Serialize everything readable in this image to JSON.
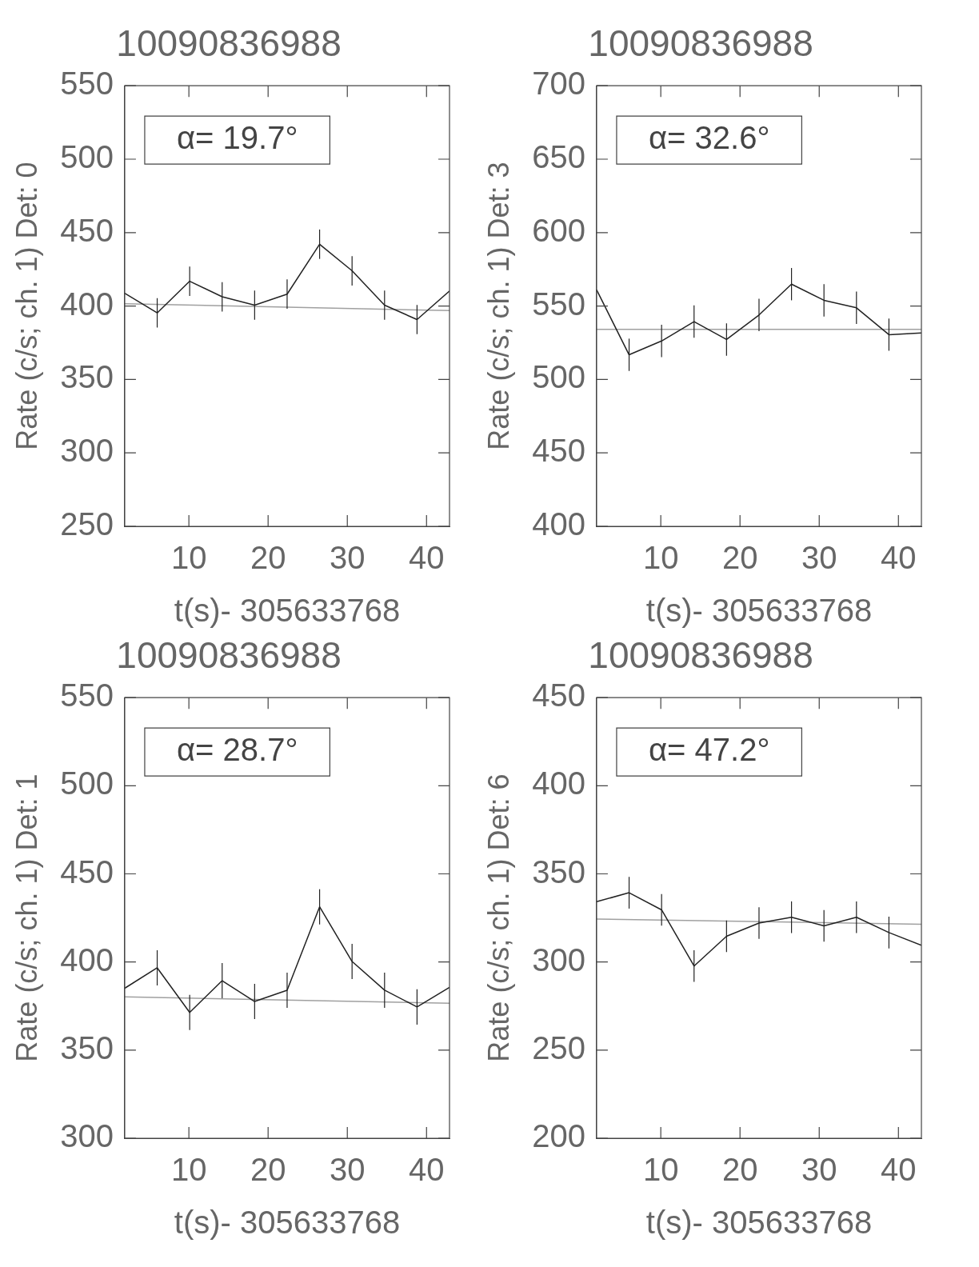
{
  "chart_data": [
    {
      "type": "line",
      "title": "10090836988",
      "xlabel": "t(s)- 305633768",
      "ylabel": "Rate (c/s; ch. 1) Det: 0",
      "annotations": [
        "α= 19.7°"
      ],
      "xlim": [
        1.9,
        42.9
      ],
      "ylim": [
        250,
        550
      ],
      "xticks": [
        10,
        20,
        30,
        40
      ],
      "yticks": [
        250,
        300,
        350,
        400,
        450,
        500,
        550
      ],
      "grid": false,
      "marker": "none",
      "series": [
        {
          "color": "#222222",
          "x": [
            1.9,
            6,
            10.1,
            14.2,
            18.3,
            22.4,
            26.5,
            30.6,
            34.7,
            38.8,
            42.9
          ],
          "values": [
            408.7,
            395.3,
            416.9,
            406.3,
            400.6,
            408.1,
            442.1,
            424.0,
            400.6,
            390.8,
            410.2
          ],
          "errors": [
            null,
            10,
            10,
            10,
            10,
            10,
            10,
            10,
            10,
            10,
            null
          ]
        },
        {
          "type": "line",
          "color": "#a0a0a0",
          "x": [
            1.9,
            42.9
          ],
          "values": [
            401.6,
            396.9
          ]
        }
      ]
    },
    {
      "type": "line",
      "title": "10090836988",
      "xlabel": "t(s)- 305633768",
      "ylabel": "Rate (c/s; ch. 1) Det: 3",
      "annotations": [
        "α= 32.6°"
      ],
      "xlim": [
        1.9,
        42.9
      ],
      "ylim": [
        400,
        700
      ],
      "xticks": [
        10,
        20,
        30,
        40
      ],
      "yticks": [
        400,
        450,
        500,
        550,
        600,
        650,
        700
      ],
      "grid": false,
      "marker": "none",
      "series": [
        {
          "color": "#222222",
          "x": [
            1.9,
            6,
            10.1,
            14.2,
            18.3,
            22.4,
            26.5,
            30.6,
            34.7,
            38.8,
            42.9
          ],
          "values": [
            561.0,
            516.8,
            526.2,
            539.4,
            527.2,
            543.9,
            564.9,
            553.9,
            548.8,
            530.5,
            531.7
          ],
          "errors": [
            null,
            11,
            11,
            11,
            11,
            11,
            11,
            11,
            11,
            11,
            null
          ]
        },
        {
          "type": "line",
          "color": "#a0a0a0",
          "x": [
            1.9,
            42.9
          ],
          "values": [
            534.1,
            534.1
          ]
        }
      ]
    },
    {
      "type": "line",
      "title": "10090836988",
      "xlabel": "t(s)- 305633768",
      "ylabel": "Rate (c/s; ch. 1) Det: 1",
      "annotations": [
        "α= 28.7°"
      ],
      "xlim": [
        1.9,
        42.9
      ],
      "ylim": [
        300,
        550
      ],
      "xticks": [
        10,
        20,
        30,
        40
      ],
      "yticks": [
        300,
        350,
        400,
        450,
        500,
        550
      ],
      "grid": false,
      "marker": "none",
      "series": [
        {
          "color": "#222222",
          "x": [
            1.9,
            6,
            10.1,
            14.2,
            18.3,
            22.4,
            26.5,
            30.6,
            34.7,
            38.8,
            42.9
          ],
          "values": [
            385.1,
            396.7,
            371.4,
            389.4,
            377.6,
            384.0,
            431.3,
            400.3,
            384.0,
            374.5,
            385.6
          ],
          "errors": [
            null,
            10,
            10,
            10,
            10,
            10,
            10,
            10,
            10,
            10,
            null
          ]
        },
        {
          "type": "line",
          "color": "#a0a0a0",
          "x": [
            1.9,
            42.9
          ],
          "values": [
            380.2,
            376.6
          ]
        }
      ]
    },
    {
      "type": "line",
      "title": "10090836988",
      "xlabel": "t(s)- 305633768",
      "ylabel": "Rate (c/s; ch. 1) Det: 6",
      "annotations": [
        "α= 47.2°"
      ],
      "xlim": [
        1.9,
        42.9
      ],
      "ylim": [
        200,
        450
      ],
      "xticks": [
        10,
        20,
        30,
        40
      ],
      "yticks": [
        200,
        250,
        300,
        350,
        400,
        450
      ],
      "grid": false,
      "marker": "none",
      "series": [
        {
          "color": "#222222",
          "x": [
            1.9,
            6,
            10.1,
            14.2,
            18.3,
            22.4,
            26.5,
            30.6,
            34.7,
            38.8,
            42.9
          ],
          "values": [
            334.2,
            339.3,
            329.6,
            297.7,
            314.6,
            322.1,
            325.4,
            320.5,
            325.4,
            316.7,
            309.5
          ],
          "errors": [
            null,
            9,
            9,
            9,
            9,
            9,
            9,
            9,
            9,
            9,
            null
          ]
        },
        {
          "type": "line",
          "color": "#a0a0a0",
          "x": [
            1.9,
            42.9
          ],
          "values": [
            324.4,
            321.4
          ]
        }
      ]
    }
  ]
}
